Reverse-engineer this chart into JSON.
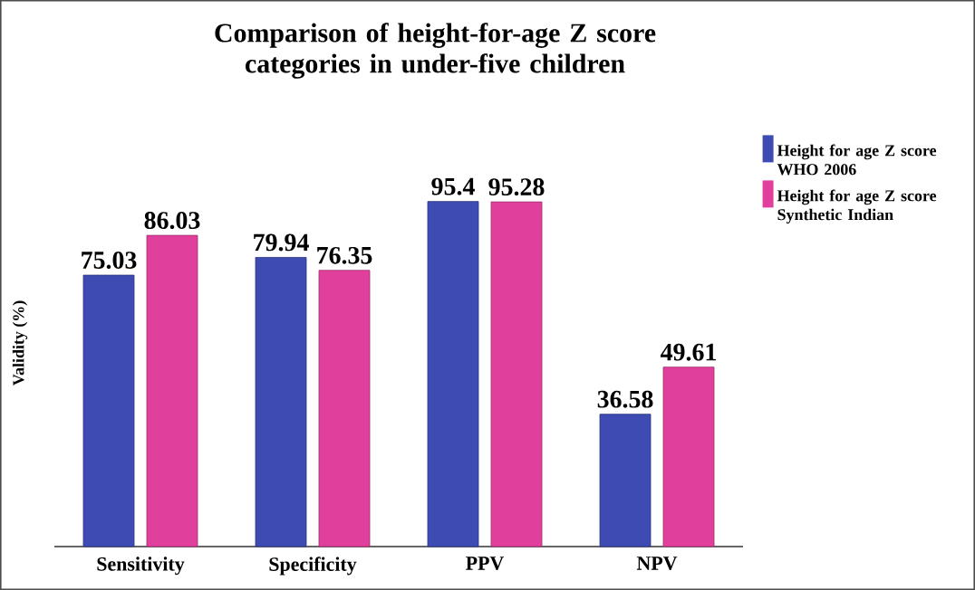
{
  "chart_data": {
    "type": "bar",
    "title": "Comparison of height-for-age Z score categories in under-five children",
    "ylabel": "Validity (%)",
    "categories": [
      "Sensitivity",
      "Specificity",
      "PPV",
      "NPV"
    ],
    "series": [
      {
        "name": "Height for age Z score WHO 2006",
        "color": "#3d4bb3",
        "values": [
          75.03,
          79.94,
          95.4,
          36.58
        ]
      },
      {
        "name": "Height for age Z score Synthetic Indian",
        "color": "#e0409c",
        "values": [
          86.03,
          76.35,
          95.28,
          49.61
        ]
      }
    ],
    "data_labels": true,
    "legend": "top right"
  }
}
